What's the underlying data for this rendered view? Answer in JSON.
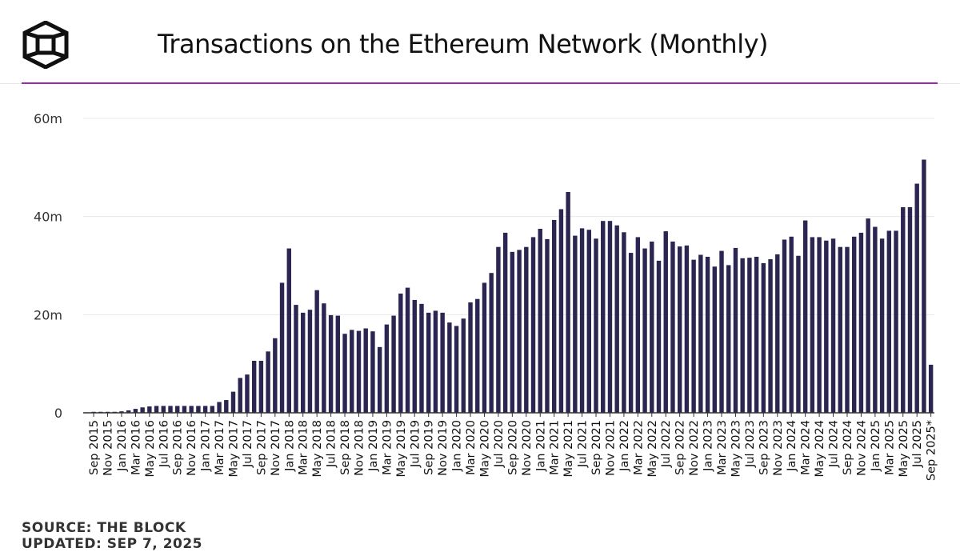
{
  "header": {
    "title": "Transactions on the Ethereum Network (Monthly)",
    "logo_icon": "the-block-cube-icon"
  },
  "footer": {
    "source": "SOURCE: THE BLOCK",
    "updated": "UPDATED: SEP 7, 2025"
  },
  "colors": {
    "bar": "#2b2552",
    "accent": "#9c27b0",
    "gridline": "#e8e8e8",
    "axis": "#333333",
    "text": "#111111"
  },
  "chart_data": {
    "type": "bar",
    "title": "Transactions on the Ethereum Network (Monthly)",
    "xlabel": "",
    "ylabel": "",
    "ylim": [
      0,
      60000000
    ],
    "grid": true,
    "yticks": [
      {
        "value": 0,
        "label": "0"
      },
      {
        "value": 20000000,
        "label": "20m"
      },
      {
        "value": 40000000,
        "label": "40m"
      },
      {
        "value": 60000000,
        "label": "60m"
      }
    ],
    "categories": [
      "Aug 2015",
      "Sep 2015",
      "Oct 2015",
      "Nov 2015",
      "Dec 2015",
      "Jan 2016",
      "Feb 2016",
      "Mar 2016",
      "Apr 2016",
      "May 2016",
      "Jun 2016",
      "Jul 2016",
      "Aug 2016",
      "Sep 2016",
      "Oct 2016",
      "Nov 2016",
      "Dec 2016",
      "Jan 2017",
      "Feb 2017",
      "Mar 2017",
      "Apr 2017",
      "May 2017",
      "Jun 2017",
      "Jul 2017",
      "Aug 2017",
      "Sep 2017",
      "Oct 2017",
      "Nov 2017",
      "Dec 2017",
      "Jan 2018",
      "Feb 2018",
      "Mar 2018",
      "Apr 2018",
      "May 2018",
      "Jun 2018",
      "Jul 2018",
      "Aug 2018",
      "Sep 2018",
      "Oct 2018",
      "Nov 2018",
      "Dec 2018",
      "Jan 2019",
      "Feb 2019",
      "Mar 2019",
      "Apr 2019",
      "May 2019",
      "Jun 2019",
      "Jul 2019",
      "Aug 2019",
      "Sep 2019",
      "Oct 2019",
      "Nov 2019",
      "Dec 2019",
      "Jan 2020",
      "Feb 2020",
      "Mar 2020",
      "Apr 2020",
      "May 2020",
      "Jun 2020",
      "Jul 2020",
      "Aug 2020",
      "Sep 2020",
      "Oct 2020",
      "Nov 2020",
      "Dec 2020",
      "Jan 2021",
      "Feb 2021",
      "Mar 2021",
      "Apr 2021",
      "May 2021",
      "Jun 2021",
      "Jul 2021",
      "Aug 2021",
      "Sep 2021",
      "Oct 2021",
      "Nov 2021",
      "Dec 2021",
      "Jan 2022",
      "Feb 2022",
      "Mar 2022",
      "Apr 2022",
      "May 2022",
      "Jun 2022",
      "Jul 2022",
      "Aug 2022",
      "Sep 2022",
      "Oct 2022",
      "Nov 2022",
      "Dec 2022",
      "Jan 2023",
      "Feb 2023",
      "Mar 2023",
      "Apr 2023",
      "May 2023",
      "Jun 2023",
      "Jul 2023",
      "Aug 2023",
      "Sep 2023",
      "Oct 2023",
      "Nov 2023",
      "Dec 2023",
      "Jan 2024",
      "Feb 2024",
      "Mar 2024",
      "Apr 2024",
      "May 2024",
      "Jun 2024",
      "Jul 2024",
      "Aug 2024",
      "Sep 2024",
      "Oct 2024",
      "Nov 2024",
      "Dec 2024",
      "Jan 2025",
      "Feb 2025",
      "Mar 2025",
      "Apr 2025",
      "May 2025",
      "Jun 2025",
      "Jul 2025",
      "Aug 2025",
      "Sep 2025*"
    ],
    "xtick_labels": [
      "Sep 2015",
      "Nov 2015",
      "Jan 2016",
      "Mar 2016",
      "May 2016",
      "Jul 2016",
      "Sep 2016",
      "Nov 2016",
      "Jan 2017",
      "Mar 2017",
      "May 2017",
      "Jul 2017",
      "Sep 2017",
      "Nov 2017",
      "Jan 2018",
      "Mar 2018",
      "May 2018",
      "Jul 2018",
      "Sep 2018",
      "Nov 2018",
      "Jan 2019",
      "Mar 2019",
      "May 2019",
      "Jul 2019",
      "Sep 2019",
      "Nov 2019",
      "Jan 2020",
      "Mar 2020",
      "May 2020",
      "Jul 2020",
      "Sep 2020",
      "Nov 2020",
      "Jan 2021",
      "Mar 2021",
      "May 2021",
      "Jul 2021",
      "Sep 2021",
      "Nov 2021",
      "Jan 2022",
      "Mar 2022",
      "May 2022",
      "Jul 2022",
      "Sep 2022",
      "Nov 2022",
      "Jan 2023",
      "Mar 2023",
      "May 2023",
      "Jul 2023",
      "Sep 2023",
      "Nov 2023",
      "Jan 2024",
      "Mar 2024",
      "May 2024",
      "Jul 2024",
      "Sep 2024",
      "Nov 2024",
      "Jan 2025",
      "Mar 2025",
      "May 2025",
      "Jul 2025",
      "Sep 2025*"
    ],
    "series": [
      {
        "name": "Transactions",
        "values": [
          100000,
          200000,
          200000,
          200000,
          200000,
          300000,
          500000,
          800000,
          1100000,
          1300000,
          1400000,
          1400000,
          1400000,
          1400000,
          1400000,
          1400000,
          1400000,
          1400000,
          1400000,
          2200000,
          2600000,
          4300000,
          7100000,
          7800000,
          10600000,
          10600000,
          12500000,
          15200000,
          26500000,
          33500000,
          22000000,
          20400000,
          21000000,
          25000000,
          22300000,
          19900000,
          19800000,
          16100000,
          16900000,
          16700000,
          17200000,
          16600000,
          13400000,
          18000000,
          19800000,
          24300000,
          25500000,
          23000000,
          22200000,
          20400000,
          20800000,
          20400000,
          18400000,
          17700000,
          19200000,
          22500000,
          23200000,
          26500000,
          28500000,
          33800000,
          36700000,
          32800000,
          33200000,
          33800000,
          35800000,
          37500000,
          35400000,
          39300000,
          41500000,
          45000000,
          36100000,
          37600000,
          37300000,
          35500000,
          39100000,
          39100000,
          38200000,
          36800000,
          32600000,
          35800000,
          33500000,
          34900000,
          31000000,
          37000000,
          34900000,
          33900000,
          34100000,
          31200000,
          32200000,
          31800000,
          29800000,
          33000000,
          30100000,
          33600000,
          31500000,
          31600000,
          31800000,
          30500000,
          31300000,
          32300000,
          35300000,
          35900000,
          32000000,
          39200000,
          35800000,
          35800000,
          35100000,
          35500000,
          33800000,
          33800000,
          35900000,
          36700000,
          39600000,
          37900000,
          35500000,
          37100000,
          37100000,
          41900000,
          41900000,
          46700000,
          51600000,
          9800000
        ]
      }
    ]
  }
}
